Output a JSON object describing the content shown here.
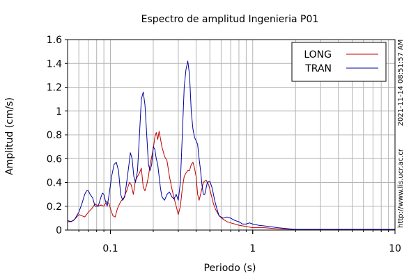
{
  "chart_data": {
    "type": "line",
    "title": "Espectro de amplitud Ingenieria P01",
    "xlabel": "Periodo (s)",
    "ylabel": "Amplitud (cm/s)",
    "x_scale": "log",
    "xlim": [
      0.05,
      10
    ],
    "ylim": [
      0,
      1.6
    ],
    "x_ticks": [
      0.1,
      1,
      10
    ],
    "x_tick_labels": [
      "0.1",
      "1",
      "10"
    ],
    "y_ticks": [
      0,
      0.2,
      0.4,
      0.6,
      0.8,
      1,
      1.2,
      1.4,
      1.6
    ],
    "y_tick_labels": [
      "0",
      "0.2",
      "0.4",
      "0.6",
      "0.8",
      "1",
      "1.2",
      "1.4",
      "1.6"
    ],
    "grid": true,
    "legend_position": "top-right",
    "side_text_top": "2021-11-14 08:51:57 AM",
    "side_text_bottom": "http://www.lis.ucr.ac.cr",
    "series": [
      {
        "name": "LONG",
        "color": "#c00000",
        "points": [
          [
            0.05,
            0.07
          ],
          [
            0.052,
            0.07
          ],
          [
            0.055,
            0.08
          ],
          [
            0.058,
            0.11
          ],
          [
            0.06,
            0.13
          ],
          [
            0.063,
            0.12
          ],
          [
            0.066,
            0.11
          ],
          [
            0.07,
            0.15
          ],
          [
            0.074,
            0.18
          ],
          [
            0.078,
            0.22
          ],
          [
            0.082,
            0.2
          ],
          [
            0.086,
            0.21
          ],
          [
            0.09,
            0.2
          ],
          [
            0.094,
            0.24
          ],
          [
            0.098,
            0.22
          ],
          [
            0.1,
            0.18
          ],
          [
            0.104,
            0.12
          ],
          [
            0.108,
            0.11
          ],
          [
            0.112,
            0.18
          ],
          [
            0.118,
            0.24
          ],
          [
            0.124,
            0.27
          ],
          [
            0.13,
            0.33
          ],
          [
            0.136,
            0.4
          ],
          [
            0.14,
            0.38
          ],
          [
            0.145,
            0.3
          ],
          [
            0.15,
            0.42
          ],
          [
            0.155,
            0.45
          ],
          [
            0.16,
            0.48
          ],
          [
            0.165,
            0.52
          ],
          [
            0.17,
            0.36
          ],
          [
            0.175,
            0.33
          ],
          [
            0.18,
            0.38
          ],
          [
            0.185,
            0.45
          ],
          [
            0.19,
            0.55
          ],
          [
            0.2,
            0.68
          ],
          [
            0.205,
            0.78
          ],
          [
            0.21,
            0.82
          ],
          [
            0.215,
            0.76
          ],
          [
            0.22,
            0.83
          ],
          [
            0.23,
            0.7
          ],
          [
            0.24,
            0.62
          ],
          [
            0.25,
            0.58
          ],
          [
            0.26,
            0.45
          ],
          [
            0.27,
            0.35
          ],
          [
            0.28,
            0.27
          ],
          [
            0.29,
            0.2
          ],
          [
            0.3,
            0.13
          ],
          [
            0.31,
            0.2
          ],
          [
            0.32,
            0.35
          ],
          [
            0.33,
            0.45
          ],
          [
            0.34,
            0.48
          ],
          [
            0.35,
            0.5
          ],
          [
            0.36,
            0.5
          ],
          [
            0.37,
            0.55
          ],
          [
            0.38,
            0.57
          ],
          [
            0.39,
            0.52
          ],
          [
            0.4,
            0.45
          ],
          [
            0.41,
            0.3
          ],
          [
            0.42,
            0.25
          ],
          [
            0.43,
            0.3
          ],
          [
            0.45,
            0.4
          ],
          [
            0.47,
            0.42
          ],
          [
            0.49,
            0.38
          ],
          [
            0.51,
            0.3
          ],
          [
            0.53,
            0.22
          ],
          [
            0.55,
            0.17
          ],
          [
            0.58,
            0.12
          ],
          [
            0.62,
            0.09
          ],
          [
            0.66,
            0.07
          ],
          [
            0.7,
            0.06
          ],
          [
            0.75,
            0.05
          ],
          [
            0.8,
            0.04
          ],
          [
            0.9,
            0.03
          ],
          [
            1.0,
            0.02
          ],
          [
            1.2,
            0.02
          ],
          [
            1.5,
            0.01
          ],
          [
            2.0,
            0.005
          ],
          [
            3.0,
            0.005
          ],
          [
            5.0,
            0.005
          ],
          [
            10.0,
            0.005
          ]
        ]
      },
      {
        "name": "TRAN",
        "color": "#0000a0",
        "points": [
          [
            0.05,
            0.08
          ],
          [
            0.053,
            0.07
          ],
          [
            0.056,
            0.09
          ],
          [
            0.06,
            0.15
          ],
          [
            0.063,
            0.22
          ],
          [
            0.066,
            0.3
          ],
          [
            0.068,
            0.33
          ],
          [
            0.07,
            0.33
          ],
          [
            0.072,
            0.3
          ],
          [
            0.075,
            0.27
          ],
          [
            0.078,
            0.2
          ],
          [
            0.082,
            0.2
          ],
          [
            0.086,
            0.28
          ],
          [
            0.088,
            0.31
          ],
          [
            0.09,
            0.3
          ],
          [
            0.092,
            0.25
          ],
          [
            0.095,
            0.2
          ],
          [
            0.098,
            0.3
          ],
          [
            0.102,
            0.45
          ],
          [
            0.106,
            0.55
          ],
          [
            0.11,
            0.57
          ],
          [
            0.114,
            0.5
          ],
          [
            0.118,
            0.3
          ],
          [
            0.122,
            0.25
          ],
          [
            0.126,
            0.28
          ],
          [
            0.13,
            0.4
          ],
          [
            0.135,
            0.55
          ],
          [
            0.138,
            0.65
          ],
          [
            0.142,
            0.6
          ],
          [
            0.146,
            0.45
          ],
          [
            0.15,
            0.4
          ],
          [
            0.155,
            0.5
          ],
          [
            0.16,
            0.8
          ],
          [
            0.165,
            1.1
          ],
          [
            0.17,
            1.16
          ],
          [
            0.175,
            1.05
          ],
          [
            0.18,
            0.8
          ],
          [
            0.185,
            0.55
          ],
          [
            0.19,
            0.5
          ],
          [
            0.195,
            0.55
          ],
          [
            0.2,
            0.7
          ],
          [
            0.205,
            0.68
          ],
          [
            0.21,
            0.6
          ],
          [
            0.215,
            0.55
          ],
          [
            0.22,
            0.45
          ],
          [
            0.225,
            0.35
          ],
          [
            0.23,
            0.28
          ],
          [
            0.24,
            0.25
          ],
          [
            0.25,
            0.3
          ],
          [
            0.26,
            0.32
          ],
          [
            0.27,
            0.28
          ],
          [
            0.28,
            0.26
          ],
          [
            0.29,
            0.3
          ],
          [
            0.3,
            0.25
          ],
          [
            0.31,
            0.4
          ],
          [
            0.32,
            0.8
          ],
          [
            0.33,
            1.2
          ],
          [
            0.34,
            1.35
          ],
          [
            0.35,
            1.42
          ],
          [
            0.36,
            1.3
          ],
          [
            0.37,
            1.0
          ],
          [
            0.38,
            0.85
          ],
          [
            0.39,
            0.78
          ],
          [
            0.4,
            0.75
          ],
          [
            0.41,
            0.72
          ],
          [
            0.42,
            0.6
          ],
          [
            0.43,
            0.5
          ],
          [
            0.44,
            0.38
          ],
          [
            0.45,
            0.3
          ],
          [
            0.46,
            0.3
          ],
          [
            0.47,
            0.35
          ],
          [
            0.48,
            0.4
          ],
          [
            0.5,
            0.41
          ],
          [
            0.52,
            0.35
          ],
          [
            0.54,
            0.25
          ],
          [
            0.56,
            0.18
          ],
          [
            0.58,
            0.12
          ],
          [
            0.62,
            0.1
          ],
          [
            0.66,
            0.11
          ],
          [
            0.7,
            0.1
          ],
          [
            0.75,
            0.08
          ],
          [
            0.8,
            0.07
          ],
          [
            0.85,
            0.05
          ],
          [
            0.9,
            0.05
          ],
          [
            0.95,
            0.06
          ],
          [
            1.0,
            0.05
          ],
          [
            1.1,
            0.04
          ],
          [
            1.3,
            0.03
          ],
          [
            1.5,
            0.02
          ],
          [
            1.8,
            0.01
          ],
          [
            2.0,
            0.005
          ],
          [
            3.0,
            0.005
          ],
          [
            5.0,
            0.005
          ],
          [
            10.0,
            0.005
          ]
        ]
      }
    ]
  }
}
